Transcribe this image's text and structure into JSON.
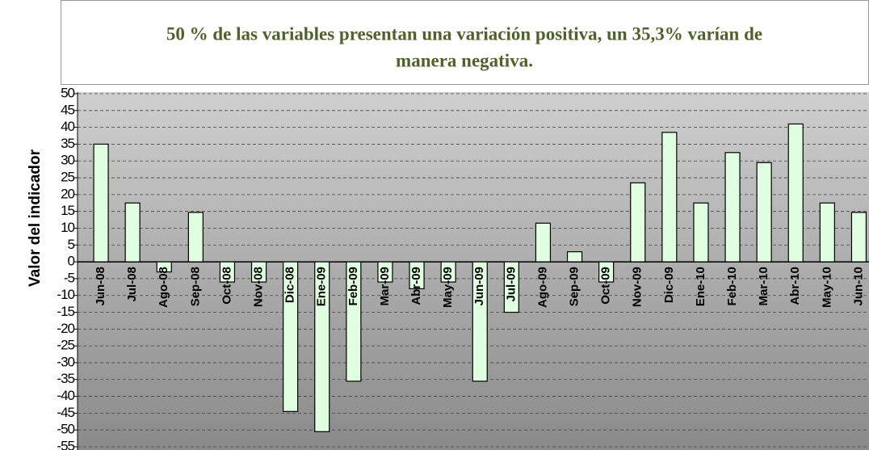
{
  "chart_data": {
    "type": "bar",
    "annotation": [
      "50 % de las variables presentan una variación positiva, un 35,3% varían de",
      "manera negativa."
    ],
    "y_label": "Valor del indicador",
    "categories": [
      "Jun-08",
      "Jul-08",
      "Ago-08",
      "Sep-08",
      "Oct-08",
      "Nov-08",
      "Dic-08",
      "Ene-09",
      "Feb-09",
      "Mar-09",
      "Abr-09",
      "May-09",
      "Jun-09",
      "Jul-09",
      "Ago-09",
      "Sep-09",
      "Oct-09",
      "Nov-09",
      "Dic-09",
      "Ene-10",
      "Feb-10",
      "Mar-10",
      "Abr-10",
      "May-10",
      "Jun-10"
    ],
    "values": [
      35,
      17.5,
      -3,
      14.7,
      -6,
      -6,
      -44.5,
      -50.5,
      -35.5,
      -6,
      -8,
      -6,
      -35.5,
      -15,
      11.5,
      3,
      -6,
      23.5,
      38.5,
      17.5,
      32.5,
      29.5,
      41,
      17.5,
      14.7
    ],
    "color": "#e0ffe0",
    "ylim": [
      -55,
      50
    ],
    "yticks": [
      50,
      45,
      40,
      35,
      30,
      25,
      20,
      15,
      10,
      5,
      0,
      -5,
      -10,
      -15,
      -20,
      -25,
      -30,
      -35,
      -40,
      -45,
      -50,
      -55
    ],
    "grid": true
  }
}
